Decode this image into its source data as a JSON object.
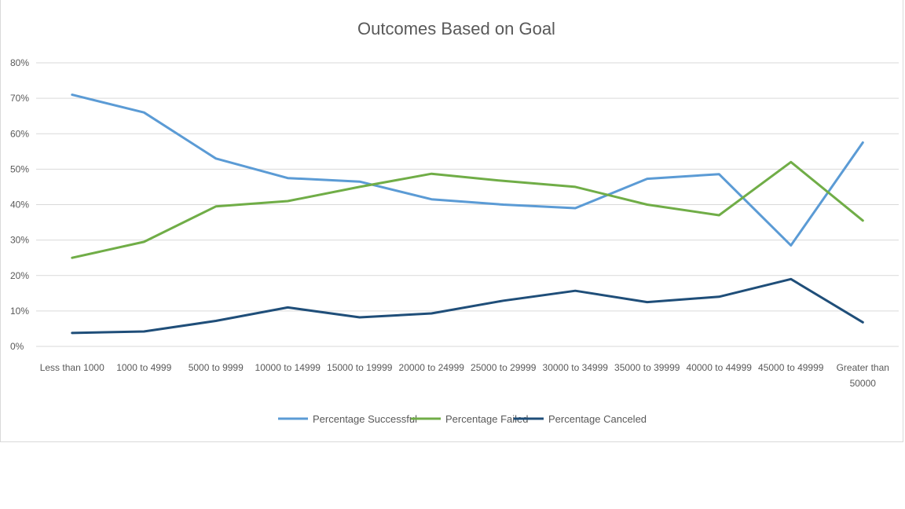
{
  "chart_data": {
    "type": "line",
    "title": "Outcomes Based on Goal",
    "xlabel": "",
    "ylabel": "",
    "categories": [
      "Less than 1000",
      "1000 to 4999",
      "5000 to 9999",
      "10000 to 14999",
      "15000 to 19999",
      "20000 to 24999",
      "25000 to 29999",
      "30000 to 34999",
      "35000 to 39999",
      "40000 to 44999",
      "45000 to 49999",
      "Greater than 50000"
    ],
    "category_lines": [
      [
        "Less than 1000"
      ],
      [
        "1000 to 4999"
      ],
      [
        "5000 to 9999"
      ],
      [
        "10000 to 14999"
      ],
      [
        "15000 to 19999"
      ],
      [
        "20000 to 24999"
      ],
      [
        "25000 to 29999"
      ],
      [
        "30000 to 34999"
      ],
      [
        "35000 to 39999"
      ],
      [
        "40000 to 44999"
      ],
      [
        "45000 to 49999"
      ],
      [
        "Greater than",
        "50000"
      ]
    ],
    "yticks": [
      "0%",
      "10%",
      "20%",
      "30%",
      "40%",
      "50%",
      "60%",
      "70%",
      "80%"
    ],
    "ylim": [
      0,
      80
    ],
    "grid": true,
    "legend_position": "bottom",
    "series": [
      {
        "name": "Percentage Successful",
        "color": "#5b9bd5",
        "values": [
          71,
          66,
          53,
          47.5,
          46.5,
          41.5,
          40,
          39,
          47.3,
          48.6,
          28.5,
          57.5
        ]
      },
      {
        "name": "Percentage Failed",
        "color": "#70ad47",
        "values": [
          25,
          29.5,
          39.5,
          41,
          45,
          48.7,
          46.7,
          45,
          40,
          37,
          52,
          35.5
        ]
      },
      {
        "name": "Percentage Canceled",
        "color": "#1f4e79",
        "values": [
          3.8,
          4.2,
          7.2,
          11,
          8.2,
          9.3,
          12.9,
          15.7,
          12.5,
          14,
          19,
          6.8
        ]
      }
    ]
  }
}
